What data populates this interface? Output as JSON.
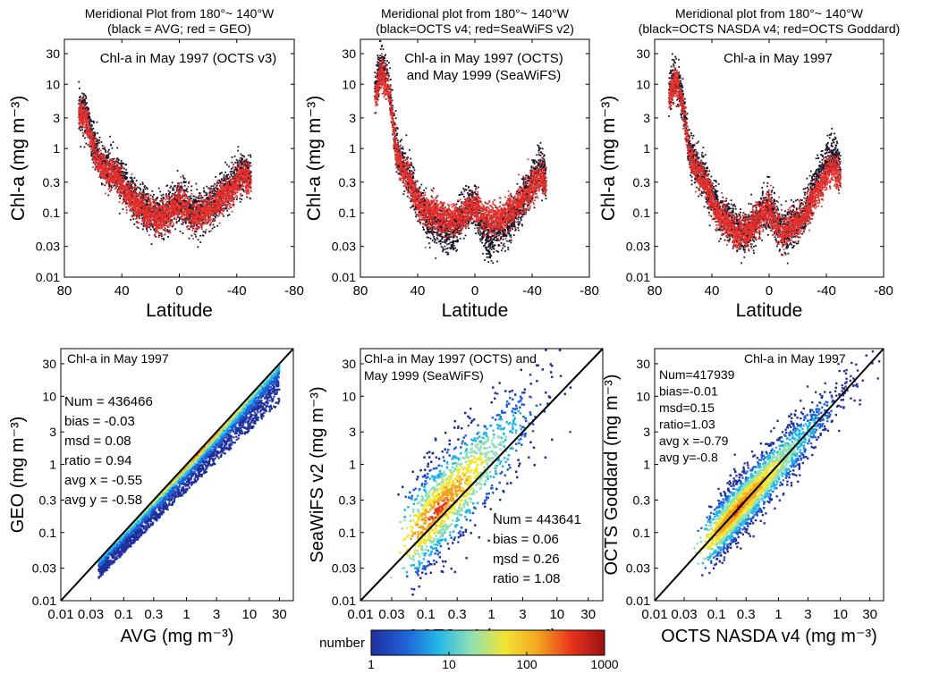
{
  "colors": {
    "black_series": "#141428",
    "red_series": "#e8302c",
    "density_ramp": [
      "#1f2f9c",
      "#1f5fd6",
      "#23b6e8",
      "#8fe0b5",
      "#f2e634",
      "#f2a51f",
      "#e8331c",
      "#9c1212"
    ]
  },
  "colorbar": {
    "label": "number",
    "ticks": [
      "1",
      "10",
      "100",
      "1000"
    ],
    "values": [
      1,
      10,
      100,
      1000
    ],
    "scale": "log"
  },
  "chart_data": [
    {
      "type": "scatter",
      "panel": "top-left",
      "title_lines": [
        "Meridional Plot from 180°~ 140°W",
        "(black = AVG; red = GEO)"
      ],
      "annotation": [
        "Chl-a in May 1997 (OCTS v3)"
      ],
      "xlabel": "Latitude",
      "ylabel": "Chl-a (mg m⁻³)",
      "xlim": [
        80,
        -80
      ],
      "ylim": [
        0.01,
        50
      ],
      "yscale": "log",
      "xticks": [
        80,
        40,
        0,
        -40,
        -80
      ],
      "xtick_labels": [
        "80",
        "40",
        "0",
        "-40",
        "-80"
      ],
      "yticks": [
        0.01,
        0.03,
        0.1,
        0.3,
        1,
        3,
        10,
        30
      ],
      "ytick_labels": [
        "0.01",
        "0.03",
        "0.1",
        "0.3",
        "1",
        "3",
        "10",
        "30"
      ],
      "x": [
        70,
        65,
        60,
        55,
        50,
        45,
        40,
        35,
        30,
        25,
        20,
        15,
        10,
        5,
        0,
        -5,
        -10,
        -15,
        -20,
        -25,
        -30,
        -35,
        -40,
        -45,
        -50
      ],
      "series": [
        {
          "name": "AVG",
          "color_key": "black_series",
          "values": [
            4,
            3.5,
            1.2,
            0.6,
            0.5,
            0.45,
            0.3,
            0.2,
            0.15,
            0.12,
            0.1,
            0.09,
            0.1,
            0.12,
            0.15,
            0.13,
            0.1,
            0.1,
            0.12,
            0.15,
            0.2,
            0.25,
            0.35,
            0.45,
            0.35
          ]
        },
        {
          "name": "GEO",
          "color_key": "red_series",
          "values": [
            3.5,
            3,
            1,
            0.55,
            0.45,
            0.4,
            0.28,
            0.18,
            0.13,
            0.11,
            0.09,
            0.08,
            0.09,
            0.11,
            0.14,
            0.12,
            0.09,
            0.09,
            0.11,
            0.13,
            0.18,
            0.22,
            0.3,
            0.4,
            0.3
          ]
        }
      ]
    },
    {
      "type": "scatter",
      "panel": "top-middle",
      "title_lines": [
        "Meridional plot from 180°~ 140°W",
        "(black=OCTS v4; red=SeaWiFS v2)"
      ],
      "annotation": [
        "Chl-a in May 1997 (OCTS)",
        "and May 1999 (SeaWiFS)"
      ],
      "xlabel": "Latitude",
      "ylabel": "Chl-a (mg m⁻³)",
      "xlim": [
        80,
        -80
      ],
      "ylim": [
        0.01,
        50
      ],
      "yscale": "log",
      "xticks": [
        80,
        40,
        0,
        -40,
        -80
      ],
      "xtick_labels": [
        "80",
        "40",
        "0",
        "-40",
        "-80"
      ],
      "yticks": [
        0.01,
        0.03,
        0.1,
        0.3,
        1,
        3,
        10,
        30
      ],
      "ytick_labels": [
        "0.01",
        "0.03",
        "0.1",
        "0.3",
        "1",
        "3",
        "10",
        "30"
      ],
      "x": [
        70,
        65,
        60,
        55,
        50,
        45,
        40,
        35,
        30,
        25,
        20,
        15,
        10,
        5,
        0,
        -5,
        -10,
        -15,
        -20,
        -25,
        -30,
        -35,
        -40,
        -45,
        -50
      ],
      "series": [
        {
          "name": "OCTS v4",
          "color_key": "black_series",
          "values": [
            8,
            20,
            10,
            1,
            0.5,
            0.35,
            0.15,
            0.1,
            0.08,
            0.06,
            0.05,
            0.05,
            0.08,
            0.12,
            0.13,
            0.06,
            0.04,
            0.05,
            0.06,
            0.08,
            0.12,
            0.18,
            0.3,
            0.5,
            0.35
          ]
        },
        {
          "name": "SeaWiFS v2",
          "color_key": "red_series",
          "values": [
            6,
            15,
            8,
            0.9,
            0.45,
            0.3,
            0.14,
            0.11,
            0.1,
            0.09,
            0.08,
            0.08,
            0.09,
            0.11,
            0.12,
            0.1,
            0.08,
            0.08,
            0.09,
            0.1,
            0.13,
            0.18,
            0.25,
            0.35,
            0.3
          ]
        }
      ]
    },
    {
      "type": "scatter",
      "panel": "top-right",
      "title_lines": [
        "Meridional plot from 180°~ 140°W",
        "(black=OCTS NASDA v4; red=OCTS Goddard)"
      ],
      "annotation": [
        "Chl-a in May 1997"
      ],
      "xlabel": "Latitude",
      "ylabel": "Chl-a (mg m⁻³)",
      "xlim": [
        80,
        -80
      ],
      "ylim": [
        0.01,
        50
      ],
      "yscale": "log",
      "xticks": [
        80,
        40,
        0,
        -40,
        -80
      ],
      "xtick_labels": [
        "80",
        "40",
        "0",
        "-40",
        "-80"
      ],
      "yticks": [
        0.01,
        0.03,
        0.1,
        0.3,
        1,
        3,
        10,
        30
      ],
      "ytick_labels": [
        "0.01",
        "0.03",
        "0.1",
        "0.3",
        "1",
        "3",
        "10",
        "30"
      ],
      "x": [
        70,
        65,
        60,
        55,
        50,
        45,
        40,
        35,
        30,
        25,
        20,
        15,
        10,
        5,
        0,
        -5,
        -10,
        -15,
        -20,
        -25,
        -30,
        -35,
        -40,
        -45,
        -50
      ],
      "series": [
        {
          "name": "OCTS NASDA v4",
          "color_key": "black_series",
          "values": [
            8,
            15,
            5,
            0.8,
            0.5,
            0.35,
            0.18,
            0.1,
            0.08,
            0.06,
            0.05,
            0.05,
            0.07,
            0.1,
            0.12,
            0.07,
            0.05,
            0.06,
            0.07,
            0.1,
            0.2,
            0.35,
            0.6,
            0.8,
            0.5
          ]
        },
        {
          "name": "OCTS Goddard",
          "color_key": "red_series",
          "values": [
            6,
            12,
            4,
            0.7,
            0.45,
            0.3,
            0.16,
            0.09,
            0.07,
            0.05,
            0.045,
            0.05,
            0.07,
            0.09,
            0.11,
            0.07,
            0.05,
            0.06,
            0.07,
            0.09,
            0.15,
            0.25,
            0.4,
            0.5,
            0.35
          ]
        }
      ]
    },
    {
      "type": "heatmap",
      "panel": "bottom-left",
      "annotation": [
        "Chl-a in May 1997"
      ],
      "stats": [
        "Num = 436466",
        "bias = -0.03",
        "msd = 0.08",
        "ratio = 0.94",
        "avg x = -0.55",
        "avg y = -0.58"
      ],
      "xlabel": "AVG (mg m⁻³)",
      "ylabel": "GEO (mg m⁻³)",
      "xlim": [
        0.01,
        50
      ],
      "ylim": [
        0.01,
        50
      ],
      "xscale": "log",
      "yscale": "log",
      "ticks": [
        0.01,
        0.03,
        0.1,
        0.3,
        1,
        3,
        10,
        30
      ],
      "tick_labels": [
        "0.01",
        "0.03",
        "0.1",
        "0.3",
        "1",
        "3",
        "10",
        "30"
      ],
      "one_to_one_line": true,
      "density": {
        "x_range": [
          0.04,
          30
        ],
        "y_over_x": [
          0.25,
          1.0
        ],
        "ridge_y_over_x": 0.95,
        "peak_x": 1.5
      }
    },
    {
      "type": "heatmap",
      "panel": "bottom-middle",
      "annotation": [
        "Chl-a in May 1997 (OCTS)  and",
        "May 1999 (SeaWiFS)"
      ],
      "stats": [
        "Num = 443641",
        "bias = 0.06",
        "msd = 0.26",
        "ratio = 1.08"
      ],
      "xlabel": "OCTS v4 (mg m⁻³)",
      "ylabel": "SeaWiFS v2 (mg m⁻³)",
      "xlim": [
        0.01,
        50
      ],
      "ylim": [
        0.01,
        50
      ],
      "xscale": "log",
      "yscale": "log",
      "ticks": [
        0.01,
        0.03,
        0.1,
        0.3,
        1,
        3,
        10,
        30
      ],
      "tick_labels": [
        "0.01",
        "0.03",
        "0.1",
        "0.3",
        "1",
        "3",
        "10",
        "30"
      ],
      "one_to_one_line": true,
      "density": {
        "x_range": [
          0.02,
          40
        ],
        "peak": [
          0.07,
          0.1
        ],
        "spread_decades": 0.45
      }
    },
    {
      "type": "heatmap",
      "panel": "bottom-right",
      "annotation": [
        "Chl-a in May 1997"
      ],
      "stats": [
        "Num=417939",
        "bias=-0.01",
        "msd=0.15",
        "ratio=1.03",
        "avg x =-0.79",
        "avg y=-0.8"
      ],
      "xlabel": "OCTS NASDA v4 (mg m⁻³)",
      "ylabel": "OCTS Goddard (mg m⁻³)",
      "xlim": [
        0.01,
        50
      ],
      "ylim": [
        0.01,
        50
      ],
      "xscale": "log",
      "yscale": "log",
      "ticks": [
        0.01,
        0.03,
        0.1,
        0.3,
        1,
        3,
        10,
        30
      ],
      "tick_labels": [
        "0.01",
        "0.03",
        "0.1",
        "0.3",
        "1",
        "3",
        "10",
        "30"
      ],
      "one_to_one_line": true,
      "density": {
        "x_range": [
          0.02,
          40
        ],
        "peak": [
          0.1,
          0.1
        ],
        "spread_decades": 0.25
      }
    }
  ]
}
